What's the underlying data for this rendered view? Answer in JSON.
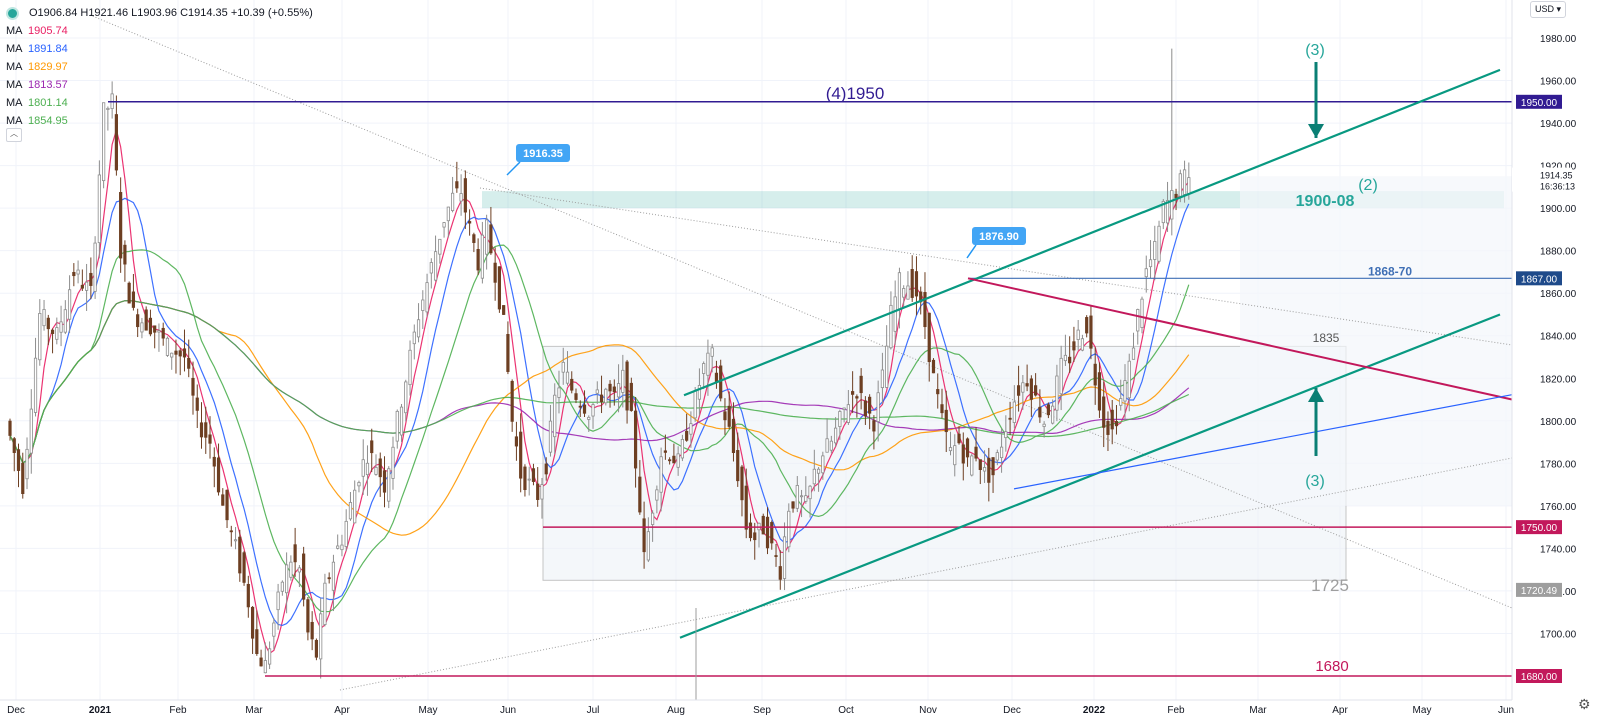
{
  "legend": {
    "ohlc": "O1906.84 H1921.46 L1903.96 C1914.35 +10.39 (+0.55%)",
    "ma": [
      {
        "label": "MA",
        "value": "1905.74",
        "color": "#e91e63"
      },
      {
        "label": "MA",
        "value": "1891.84",
        "color": "#2962ff"
      },
      {
        "label": "MA",
        "value": "1829.97",
        "color": "#ff9800"
      },
      {
        "label": "MA",
        "value": "1813.57",
        "color": "#9c27b0"
      },
      {
        "label": "MA",
        "value": "1801.14",
        "color": "#4caf50"
      },
      {
        "label": "MA",
        "value": "1854.95",
        "color": "#4caf50"
      }
    ]
  },
  "currency_button": "USD",
  "chart_data": {
    "type": "candlestick",
    "symbol_ohlc": {
      "open": 1906.84,
      "high": 1921.46,
      "low": 1903.96,
      "close": 1914.35,
      "change": 10.39,
      "change_pct": 0.55
    },
    "ylim": [
      1675,
      1990
    ],
    "y_ticks": [
      1700,
      1720,
      1740,
      1760,
      1780,
      1800,
      1820,
      1840,
      1860,
      1880,
      1900,
      1920,
      1940,
      1960,
      1980
    ],
    "x_ticks": [
      "Dec",
      "2021",
      "Feb",
      "Mar",
      "Apr",
      "May",
      "Jun",
      "Jul",
      "Aug",
      "Sep",
      "Oct",
      "Nov",
      "Dec",
      "2022",
      "Feb",
      "Mar",
      "Apr",
      "May",
      "Jun"
    ],
    "price_path": [
      [
        0,
        1800
      ],
      [
        4,
        1770
      ],
      [
        8,
        1850
      ],
      [
        12,
        1840
      ],
      [
        16,
        1870
      ],
      [
        20,
        1860
      ],
      [
        23,
        1945
      ],
      [
        25,
        1950
      ],
      [
        27,
        1880
      ],
      [
        30,
        1850
      ],
      [
        34,
        1845
      ],
      [
        38,
        1835
      ],
      [
        42,
        1830
      ],
      [
        45,
        1800
      ],
      [
        48,
        1790
      ],
      [
        51,
        1760
      ],
      [
        54,
        1740
      ],
      [
        57,
        1715
      ],
      [
        59,
        1690
      ],
      [
        61,
        1685
      ],
      [
        63,
        1705
      ],
      [
        65,
        1725
      ],
      [
        67,
        1735
      ],
      [
        69,
        1730
      ],
      [
        71,
        1700
      ],
      [
        73,
        1690
      ],
      [
        75,
        1720
      ],
      [
        77,
        1735
      ],
      [
        79,
        1745
      ],
      [
        81,
        1760
      ],
      [
        83,
        1775
      ],
      [
        85,
        1785
      ],
      [
        87,
        1780
      ],
      [
        89,
        1770
      ],
      [
        91,
        1790
      ],
      [
        93,
        1810
      ],
      [
        95,
        1830
      ],
      [
        97,
        1850
      ],
      [
        99,
        1865
      ],
      [
        101,
        1880
      ],
      [
        103,
        1895
      ],
      [
        105,
        1905
      ],
      [
        107,
        1908
      ],
      [
        109,
        1890
      ],
      [
        111,
        1875
      ],
      [
        113,
        1890
      ],
      [
        115,
        1870
      ],
      [
        117,
        1845
      ],
      [
        119,
        1800
      ],
      [
        121,
        1775
      ],
      [
        123,
        1770
      ],
      [
        125,
        1765
      ],
      [
        127,
        1780
      ],
      [
        129,
        1810
      ],
      [
        131,
        1825
      ],
      [
        133,
        1815
      ],
      [
        135,
        1810
      ],
      [
        137,
        1805
      ],
      [
        139,
        1810
      ],
      [
        141,
        1815
      ],
      [
        143,
        1810
      ],
      [
        145,
        1820
      ],
      [
        147,
        1800
      ],
      [
        149,
        1760
      ],
      [
        150,
        1735
      ],
      [
        152,
        1760
      ],
      [
        154,
        1785
      ],
      [
        156,
        1785
      ],
      [
        158,
        1780
      ],
      [
        160,
        1795
      ],
      [
        162,
        1810
      ],
      [
        164,
        1825
      ],
      [
        166,
        1830
      ],
      [
        168,
        1810
      ],
      [
        170,
        1795
      ],
      [
        172,
        1775
      ],
      [
        174,
        1750
      ],
      [
        176,
        1745
      ],
      [
        178,
        1750
      ],
      [
        180,
        1740
      ],
      [
        182,
        1730
      ],
      [
        184,
        1760
      ],
      [
        186,
        1765
      ],
      [
        188,
        1760
      ],
      [
        190,
        1775
      ],
      [
        192,
        1785
      ],
      [
        194,
        1790
      ],
      [
        196,
        1800
      ],
      [
        198,
        1810
      ],
      [
        200,
        1815
      ],
      [
        202,
        1805
      ],
      [
        204,
        1800
      ],
      [
        206,
        1820
      ],
      [
        208,
        1850
      ],
      [
        210,
        1865
      ],
      [
        212,
        1865
      ],
      [
        214,
        1860
      ],
      [
        216,
        1845
      ],
      [
        218,
        1820
      ],
      [
        220,
        1800
      ],
      [
        222,
        1785
      ],
      [
        224,
        1790
      ],
      [
        226,
        1780
      ],
      [
        228,
        1785
      ],
      [
        230,
        1775
      ],
      [
        232,
        1775
      ],
      [
        234,
        1790
      ],
      [
        236,
        1805
      ],
      [
        238,
        1815
      ],
      [
        240,
        1820
      ],
      [
        242,
        1810
      ],
      [
        244,
        1800
      ],
      [
        246,
        1810
      ],
      [
        248,
        1825
      ],
      [
        250,
        1830
      ],
      [
        252,
        1840
      ],
      [
        254,
        1845
      ],
      [
        256,
        1820
      ],
      [
        258,
        1800
      ],
      [
        260,
        1795
      ],
      [
        262,
        1810
      ],
      [
        264,
        1825
      ],
      [
        266,
        1850
      ],
      [
        268,
        1870
      ],
      [
        270,
        1880
      ],
      [
        272,
        1900
      ],
      [
        274,
        1905
      ],
      [
        276,
        1912
      ],
      [
        277,
        1914.35
      ]
    ],
    "moving_averages": [
      {
        "name": "MA",
        "value": 1905.74,
        "color": "#e91e63"
      },
      {
        "name": "MA",
        "value": 1891.84,
        "color": "#2962ff"
      },
      {
        "name": "MA",
        "value": 1829.97,
        "color": "#ff9800"
      },
      {
        "name": "MA",
        "value": 1813.57,
        "color": "#9c27b0"
      },
      {
        "name": "MA",
        "value": 1801.14,
        "color": "#4caf50"
      },
      {
        "name": "MA",
        "value": 1854.95,
        "color": "#4caf50"
      }
    ],
    "horizontal_levels": [
      {
        "price": 1950,
        "label": "(4)1950",
        "axis_label": "1950.00",
        "color": "#311b92"
      },
      {
        "price": 1867,
        "label": "1868-70",
        "axis_label": "1867.00",
        "color": "#3f6fb5"
      },
      {
        "price": 1750,
        "label": "",
        "axis_label": "1750.00",
        "color": "#c2185b"
      },
      {
        "price": 1680,
        "label": "1680",
        "axis_label": "1680.00",
        "color": "#c2185b"
      }
    ],
    "zone": {
      "from": 1900,
      "to": 1908,
      "label": "1900-08",
      "color": "#009688"
    },
    "range_box": {
      "top": 1835,
      "bottom": 1725,
      "top_label": "1835",
      "bottom_label": "1725",
      "axis_label": "1720.49"
    },
    "price_callouts": [
      {
        "label": "1916.35",
        "price": 1916.35
      },
      {
        "label": "1876.90",
        "price": 1876.9
      }
    ],
    "wave_labels": [
      "(3)",
      "(2)",
      "(3)"
    ],
    "last_price": {
      "price": "1914.35",
      "time": "16:36:13"
    }
  }
}
